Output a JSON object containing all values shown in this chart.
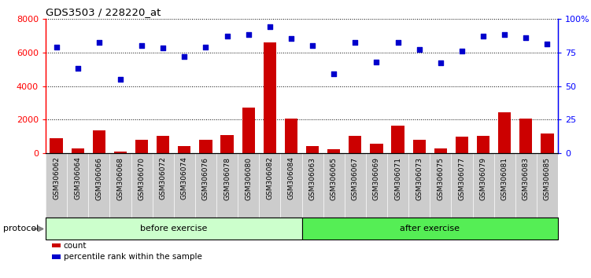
{
  "title": "GDS3503 / 228220_at",
  "categories": [
    "GSM306062",
    "GSM306064",
    "GSM306066",
    "GSM306068",
    "GSM306070",
    "GSM306072",
    "GSM306074",
    "GSM306076",
    "GSM306078",
    "GSM306080",
    "GSM306082",
    "GSM306084",
    "GSM306063",
    "GSM306065",
    "GSM306067",
    "GSM306069",
    "GSM306071",
    "GSM306073",
    "GSM306075",
    "GSM306077",
    "GSM306079",
    "GSM306081",
    "GSM306083",
    "GSM306085"
  ],
  "counts": [
    900,
    300,
    1350,
    130,
    800,
    1050,
    420,
    820,
    1100,
    2700,
    6600,
    2050,
    450,
    270,
    1050,
    560,
    1650,
    800,
    300,
    1000,
    1050,
    2450,
    2050,
    1200
  ],
  "percentile_ranks": [
    79,
    63,
    82,
    55,
    80,
    78,
    72,
    79,
    87,
    88,
    94,
    85,
    80,
    59,
    82,
    68,
    82,
    77,
    67,
    76,
    87,
    88,
    86,
    81
  ],
  "before_count": 12,
  "after_count": 12,
  "bar_color": "#cc0000",
  "dot_color": "#0000cc",
  "before_color": "#ccffcc",
  "after_color": "#55ee55",
  "label_bg_color": "#cccccc",
  "ylim_left": [
    0,
    8000
  ],
  "ylim_right": [
    0,
    100
  ],
  "yticks_left": [
    0,
    2000,
    4000,
    6000,
    8000
  ],
  "yticks_right": [
    0,
    25,
    50,
    75,
    100
  ],
  "ytick_labels_right": [
    "0",
    "25",
    "50",
    "75",
    "100%"
  ],
  "ytick_labels_left": [
    "0",
    "2000",
    "4000",
    "6000",
    "8000"
  ],
  "protocol_label": "protocol",
  "before_label": "before exercise",
  "after_label": "after exercise",
  "legend_count": "count",
  "legend_pct": "percentile rank within the sample"
}
